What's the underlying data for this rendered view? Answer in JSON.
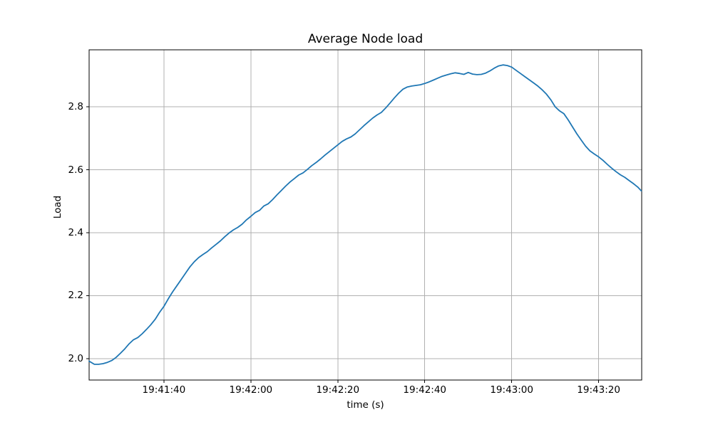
{
  "page": {
    "background": "#ffffff"
  },
  "chart_data": {
    "type": "line",
    "title": "Average Node load",
    "xlabel": "time (s)",
    "ylabel": "Load",
    "grid": true,
    "legend": "none",
    "colors": {
      "line": "#1f77b4",
      "grid": "#b0b0b0",
      "spine": "#000000",
      "text": "#000000"
    },
    "x_origin_time": "19:41:00",
    "xlim": [
      22.8,
      149.9
    ],
    "ylim": [
      1.932,
      2.981
    ],
    "x_ticks": [
      {
        "value": 40,
        "label": "19:41:40"
      },
      {
        "value": 60,
        "label": "19:42:00"
      },
      {
        "value": 80,
        "label": "19:42:20"
      },
      {
        "value": 100,
        "label": "19:42:40"
      },
      {
        "value": 120,
        "label": "19:43:00"
      },
      {
        "value": 140,
        "label": "19:43:20"
      }
    ],
    "y_ticks": [
      {
        "value": 2.0,
        "label": "2.0"
      },
      {
        "value": 2.2,
        "label": "2.2"
      },
      {
        "value": 2.4,
        "label": "2.4"
      },
      {
        "value": 2.6,
        "label": "2.6"
      },
      {
        "value": 2.8,
        "label": "2.8"
      }
    ],
    "series": [
      {
        "name": "Average Node load",
        "points": [
          [
            22.8,
            1.992
          ],
          [
            24,
            1.982
          ],
          [
            25,
            1.982
          ],
          [
            26,
            1.984
          ],
          [
            27,
            1.988
          ],
          [
            28,
            1.994
          ],
          [
            29,
            2.004
          ],
          [
            30,
            2.017
          ],
          [
            31,
            2.031
          ],
          [
            32,
            2.047
          ],
          [
            33,
            2.06
          ],
          [
            34,
            2.067
          ],
          [
            35,
            2.079
          ],
          [
            36,
            2.093
          ],
          [
            37,
            2.108
          ],
          [
            38,
            2.125
          ],
          [
            39,
            2.147
          ],
          [
            40,
            2.166
          ],
          [
            41,
            2.19
          ],
          [
            42,
            2.212
          ],
          [
            43,
            2.232
          ],
          [
            44,
            2.252
          ],
          [
            45,
            2.272
          ],
          [
            46,
            2.292
          ],
          [
            47,
            2.308
          ],
          [
            48,
            2.321
          ],
          [
            49,
            2.331
          ],
          [
            50,
            2.34
          ],
          [
            51,
            2.352
          ],
          [
            52,
            2.363
          ],
          [
            53,
            2.374
          ],
          [
            54,
            2.387
          ],
          [
            55,
            2.399
          ],
          [
            56,
            2.409
          ],
          [
            57,
            2.417
          ],
          [
            58,
            2.427
          ],
          [
            59,
            2.441
          ],
          [
            60,
            2.452
          ],
          [
            61,
            2.464
          ],
          [
            62,
            2.471
          ],
          [
            63,
            2.485
          ],
          [
            64,
            2.492
          ],
          [
            65,
            2.505
          ],
          [
            66,
            2.52
          ],
          [
            67,
            2.534
          ],
          [
            68,
            2.548
          ],
          [
            69,
            2.561
          ],
          [
            70,
            2.572
          ],
          [
            71,
            2.583
          ],
          [
            72,
            2.59
          ],
          [
            73,
            2.601
          ],
          [
            74,
            2.613
          ],
          [
            75,
            2.623
          ],
          [
            76,
            2.634
          ],
          [
            77,
            2.646
          ],
          [
            78,
            2.657
          ],
          [
            79,
            2.668
          ],
          [
            80,
            2.679
          ],
          [
            81,
            2.69
          ],
          [
            82,
            2.698
          ],
          [
            83,
            2.704
          ],
          [
            84,
            2.714
          ],
          [
            85,
            2.727
          ],
          [
            86,
            2.74
          ],
          [
            87,
            2.752
          ],
          [
            88,
            2.764
          ],
          [
            89,
            2.774
          ],
          [
            90,
            2.782
          ],
          [
            91,
            2.796
          ],
          [
            92,
            2.812
          ],
          [
            93,
            2.828
          ],
          [
            94,
            2.843
          ],
          [
            95,
            2.856
          ],
          [
            96,
            2.863
          ],
          [
            97,
            2.866
          ],
          [
            98,
            2.868
          ],
          [
            99,
            2.87
          ],
          [
            100,
            2.874
          ],
          [
            101,
            2.879
          ],
          [
            102,
            2.885
          ],
          [
            103,
            2.891
          ],
          [
            104,
            2.897
          ],
          [
            105,
            2.901
          ],
          [
            106,
            2.905
          ],
          [
            107,
            2.908
          ],
          [
            108,
            2.906
          ],
          [
            109,
            2.903
          ],
          [
            110,
            2.909
          ],
          [
            111,
            2.904
          ],
          [
            112,
            2.902
          ],
          [
            113,
            2.903
          ],
          [
            114,
            2.907
          ],
          [
            115,
            2.914
          ],
          [
            116,
            2.923
          ],
          [
            117,
            2.93
          ],
          [
            118,
            2.933
          ],
          [
            119,
            2.931
          ],
          [
            120,
            2.926
          ],
          [
            121,
            2.916
          ],
          [
            122,
            2.906
          ],
          [
            123,
            2.896
          ],
          [
            124,
            2.886
          ],
          [
            125,
            2.876
          ],
          [
            126,
            2.866
          ],
          [
            127,
            2.854
          ],
          [
            128,
            2.84
          ],
          [
            129,
            2.822
          ],
          [
            130,
            2.8
          ],
          [
            131,
            2.787
          ],
          [
            132,
            2.778
          ],
          [
            133,
            2.758
          ],
          [
            134,
            2.736
          ],
          [
            135,
            2.714
          ],
          [
            136,
            2.694
          ],
          [
            137,
            2.675
          ],
          [
            138,
            2.66
          ],
          [
            139,
            2.65
          ],
          [
            140,
            2.641
          ],
          [
            141,
            2.63
          ],
          [
            142,
            2.617
          ],
          [
            143,
            2.605
          ],
          [
            144,
            2.594
          ],
          [
            145,
            2.584
          ],
          [
            146,
            2.576
          ],
          [
            147,
            2.566
          ],
          [
            148,
            2.556
          ],
          [
            149,
            2.545
          ],
          [
            149.8,
            2.533
          ]
        ]
      }
    ]
  }
}
